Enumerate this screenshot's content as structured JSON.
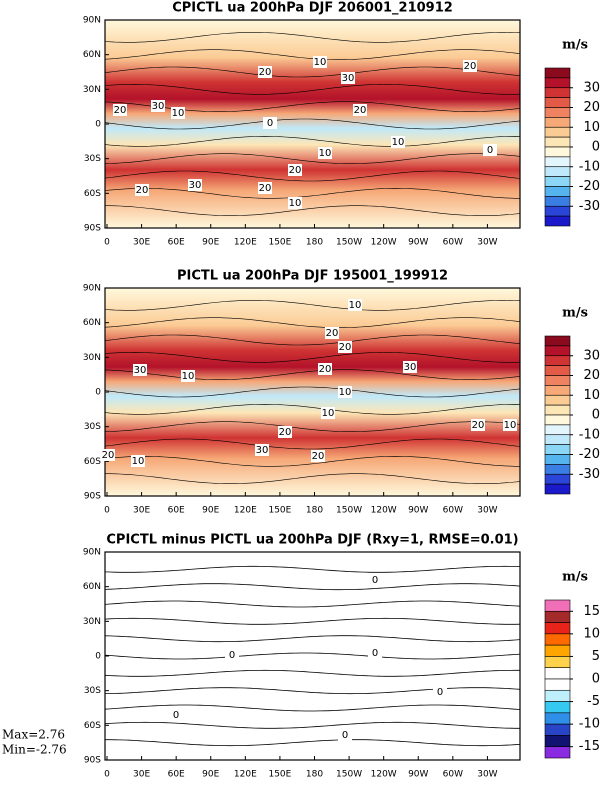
{
  "chart_data": [
    {
      "type": "contour_map",
      "title": "CPICTL ua 200hPa DJF 206001_210912",
      "x_labels": [
        "0",
        "30E",
        "60E",
        "90E",
        "120E",
        "150E",
        "180",
        "150W",
        "120W",
        "90W",
        "60W",
        "30W"
      ],
      "y_labels": [
        "90N",
        "60N",
        "30N",
        "0",
        "30S",
        "60S",
        "90S"
      ],
      "contour_labels": [
        20,
        10,
        30,
        20,
        20,
        30,
        10,
        20,
        0,
        10,
        10,
        20,
        30,
        20,
        20,
        10,
        0
      ],
      "colorbar": {
        "unit": "m/s",
        "clim": [
          -40,
          40
        ],
        "ticks": [
          30,
          20,
          10,
          0,
          -10,
          -20,
          -30
        ],
        "colors": [
          "#8c0a1e",
          "#b3122a",
          "#cf3333",
          "#e35a47",
          "#ef8260",
          "#f6a877",
          "#fbcb94",
          "#fde6b6",
          "#fff8dc",
          "#e4f6fd",
          "#bfe9fa",
          "#8ad6f4",
          "#55b4ee",
          "#3a7ee3",
          "#2a45d8",
          "#1a1acb"
        ]
      }
    },
    {
      "type": "contour_map",
      "title": "PICTL ua 200hPa DJF 195001_199912",
      "x_labels": [
        "0",
        "30E",
        "60E",
        "90E",
        "120E",
        "150E",
        "180",
        "150W",
        "120W",
        "90W",
        "60W",
        "30W"
      ],
      "y_labels": [
        "90N",
        "60N",
        "30N",
        "0",
        "30S",
        "60S",
        "90S"
      ],
      "contour_labels": [
        20,
        10,
        20,
        30,
        30,
        10,
        20,
        10,
        10,
        20,
        30,
        20,
        20,
        10,
        20,
        10
      ],
      "colorbar": {
        "unit": "m/s",
        "clim": [
          -40,
          40
        ],
        "ticks": [
          30,
          20,
          10,
          0,
          -10,
          -20,
          -30
        ],
        "colors": [
          "#8c0a1e",
          "#b3122a",
          "#cf3333",
          "#e35a47",
          "#ef8260",
          "#f6a877",
          "#fbcb94",
          "#fde6b6",
          "#fff8dc",
          "#e4f6fd",
          "#bfe9fa",
          "#8ad6f4",
          "#55b4ee",
          "#3a7ee3",
          "#2a45d8",
          "#1a1acb"
        ]
      }
    },
    {
      "type": "contour_map",
      "title": "CPICTL minus PICTL ua 200hPa DJF (Rxy=1, RMSE=0.01)",
      "x_labels": [
        "0",
        "30E",
        "60E",
        "90E",
        "120E",
        "150E",
        "180",
        "150W",
        "120W",
        "90W",
        "60W",
        "30W"
      ],
      "y_labels": [
        "90N",
        "60N",
        "30N",
        "0",
        "30S",
        "60S",
        "90S"
      ],
      "contour_labels": [
        0,
        0,
        0,
        0,
        0,
        0
      ],
      "stats": [
        "Max=2.76",
        "Min=-2.76"
      ],
      "colorbar": {
        "unit": "m/s",
        "clim": [
          -17.5,
          17.5
        ],
        "ticks": [
          15,
          10,
          5,
          0,
          -5,
          -10,
          -15
        ],
        "colors": [
          "#f06fb6",
          "#a52a2a",
          "#e8241a",
          "#ff6a00",
          "#ffa500",
          "#ffd24d",
          "#ffffff",
          "#ffffff",
          "#bfeefd",
          "#35c8f0",
          "#2f8fe8",
          "#2845c8",
          "#121270",
          "#8a2be2"
        ]
      }
    }
  ]
}
